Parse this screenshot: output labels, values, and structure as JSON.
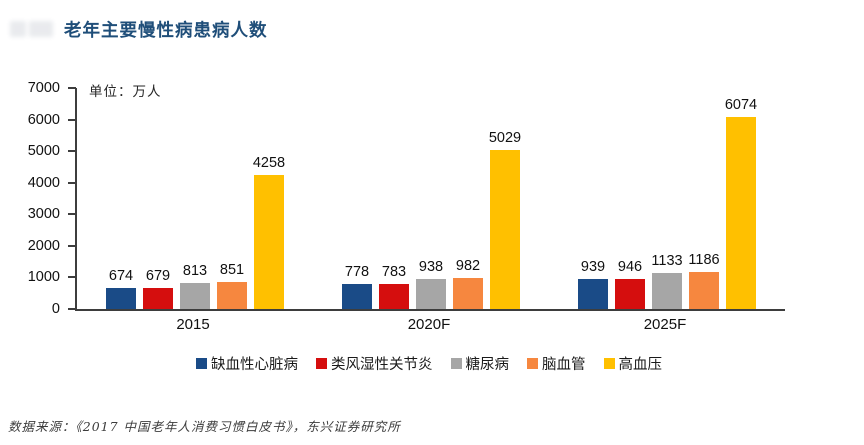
{
  "header": {
    "title": "老年主要慢性病患病人数"
  },
  "chart_data": {
    "type": "bar",
    "title": "老年主要慢性病患病人数",
    "unit_label": "单位：万人",
    "categories": [
      "2015",
      "2020F",
      "2025F"
    ],
    "series": [
      {
        "name": "缺血性心脏病",
        "color": "#1A4B87",
        "values": [
          674,
          778,
          939
        ]
      },
      {
        "name": "类风湿性关节炎",
        "color": "#D50E0E",
        "values": [
          679,
          783,
          946
        ]
      },
      {
        "name": "糖尿病",
        "color": "#A6A6A6",
        "values": [
          813,
          938,
          1133
        ]
      },
      {
        "name": "脑血管",
        "color": "#F6873F",
        "values": [
          851,
          982,
          1186
        ]
      },
      {
        "name": "高血压",
        "color": "#FFC000",
        "values": [
          4258,
          5029,
          6074
        ]
      }
    ],
    "ylim": [
      0,
      7000
    ],
    "yticks": [
      0,
      1000,
      2000,
      3000,
      4000,
      5000,
      6000,
      7000
    ],
    "grid": false,
    "legend_position": "bottom",
    "value_labels": true,
    "xlabel": "",
    "ylabel": ""
  },
  "footer": {
    "source_note": "数据来源：《2017 中国老年人消费习惯白皮书》，东兴证券研究所"
  }
}
